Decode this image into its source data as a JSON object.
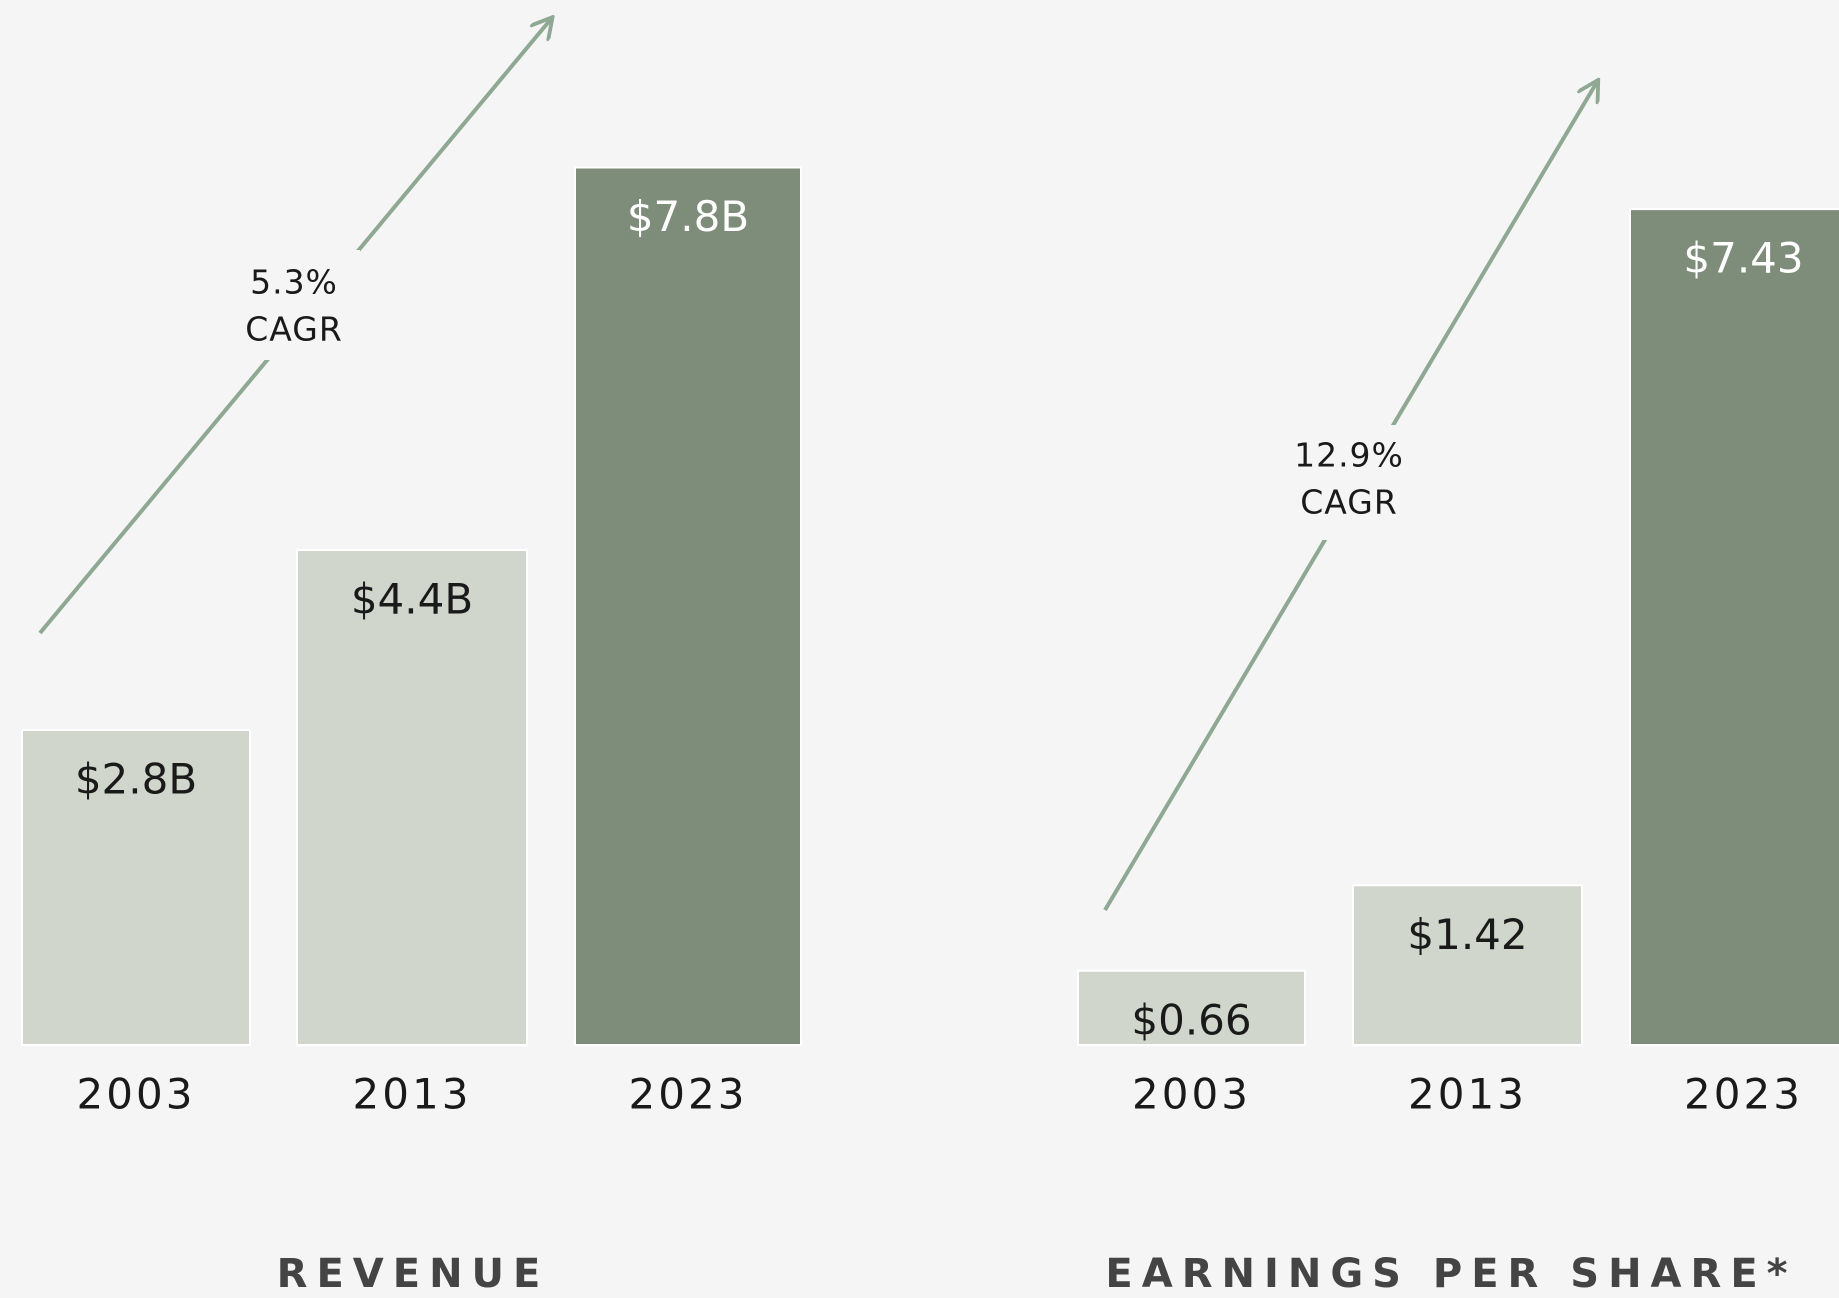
{
  "chart_data": [
    {
      "type": "bar",
      "title": "REVENUE",
      "categories": [
        "2003",
        "2013",
        "2023"
      ],
      "values": [
        2.8,
        4.4,
        7.8
      ],
      "value_labels": [
        "$2.8B",
        "$4.4B",
        "$7.8B"
      ],
      "colors": [
        "#d0d6cc",
        "#d0d6cc",
        "#7e8c7a"
      ],
      "annotation": [
        "5.3%",
        "CAGR"
      ]
    },
    {
      "type": "bar",
      "title": "EARNINGS PER SHARE*",
      "categories": [
        "2003",
        "2013",
        "2023"
      ],
      "values": [
        0.66,
        1.42,
        7.43
      ],
      "value_labels": [
        "$0.66",
        "$1.42",
        "$7.43"
      ],
      "colors": [
        "#d0d6cc",
        "#d0d6cc",
        "#7e8c7a"
      ],
      "annotation": [
        "12.9%",
        "CAGR"
      ]
    }
  ]
}
